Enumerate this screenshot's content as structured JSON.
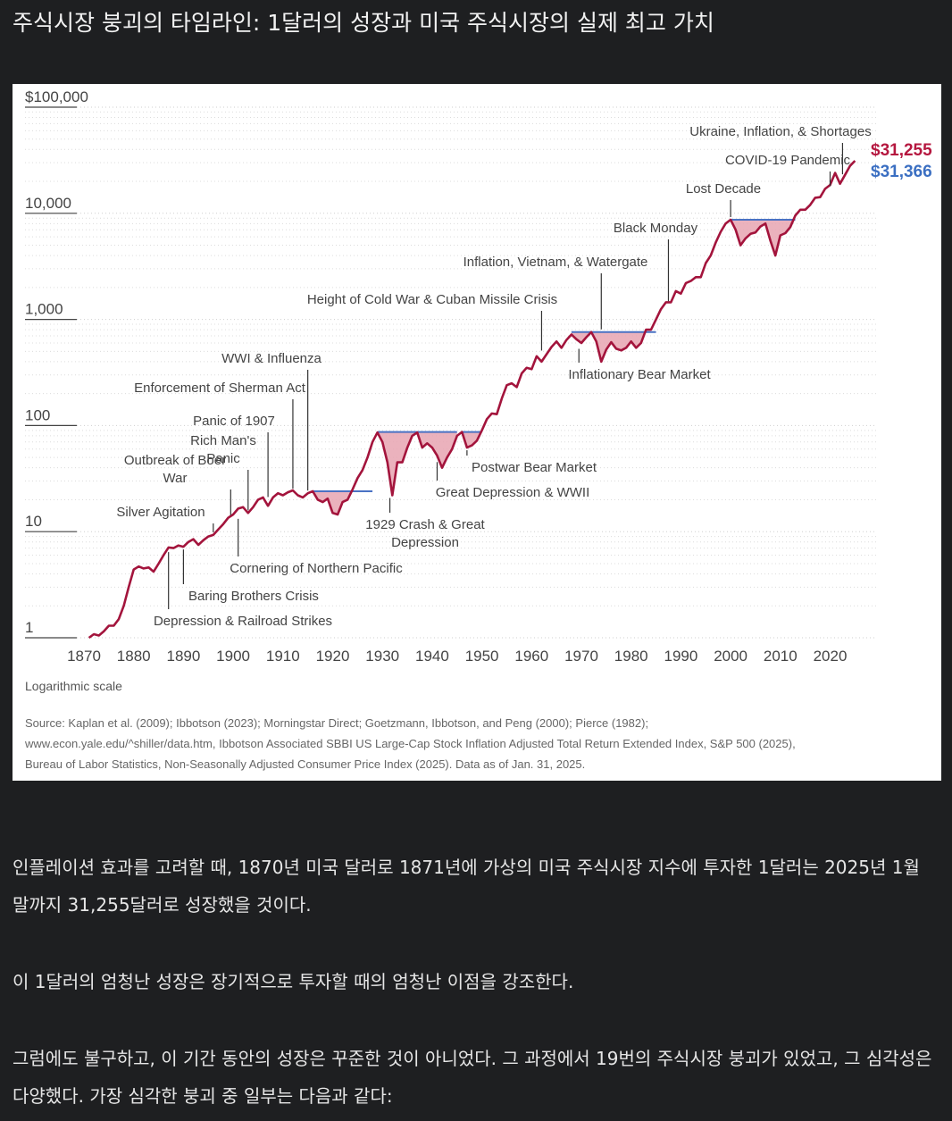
{
  "page": {
    "title": "주식시장 붕괴의 타임라인: 1달러의 성장과 미국 주식시장의 실제 최고 가치",
    "paragraphs": [
      "인플레이션 효과를 고려할 때, 1870년 미국 달러로 1871년에 가상의 미국 주식시장 지수에 투자한 1달러는 2025년 1월 말까지 31,255달러로 성장했을 것이다.",
      "이 1달러의 엄청난 성장은 장기적으로 투자할 때의 엄청난 이점을 강조한다.",
      "그럼에도 불구하고, 이 기간 동안의 성장은 꾸준한 것이 아니었다. 그 과정에서 19번의 주식시장 붕괴가 있었고, 그 심각성은 다양했다. 가장 심각한 붕괴 중 일부는 다음과 같다:"
    ]
  },
  "chart_data": {
    "type": "line",
    "title": "",
    "xlabel": "",
    "ylabel": "",
    "scale_note": "Logarithmic scale",
    "y_scale": "log",
    "ylim": [
      1,
      100000
    ],
    "xlim": [
      1870,
      2025
    ],
    "y_ticks": [
      {
        "value": 1,
        "label": "1"
      },
      {
        "value": 10,
        "label": "10"
      },
      {
        "value": 100,
        "label": "100"
      },
      {
        "value": 1000,
        "label": "1,000"
      },
      {
        "value": 10000,
        "label": "10,000"
      },
      {
        "value": 100000,
        "label": "$100,000"
      }
    ],
    "x_ticks": [
      1870,
      1880,
      1890,
      1900,
      1910,
      1920,
      1930,
      1940,
      1950,
      1960,
      1970,
      1980,
      1990,
      2000,
      2010,
      2020
    ],
    "grid": true,
    "colors": {
      "line": "#a3143c",
      "drawdown_fill": "#e8a4b1",
      "peak_line": "#4a72c4",
      "end_label_red": "#b5173f",
      "end_label_blue": "#3b6fc2"
    },
    "series": [
      {
        "values": [
          [
            1871,
            1.0
          ],
          [
            1872,
            1.08
          ],
          [
            1873,
            1.05
          ],
          [
            1874,
            1.15
          ],
          [
            1875,
            1.3
          ],
          [
            1876,
            1.3
          ],
          [
            1877,
            1.5
          ],
          [
            1878,
            2.0
          ],
          [
            1879,
            3.0
          ],
          [
            1880,
            4.4
          ],
          [
            1881,
            4.7
          ],
          [
            1882,
            4.5
          ],
          [
            1883,
            4.6
          ],
          [
            1884,
            4.2
          ],
          [
            1885,
            5.0
          ],
          [
            1886,
            6.0
          ],
          [
            1887,
            7.1
          ],
          [
            1888,
            7.0
          ],
          [
            1889,
            7.4
          ],
          [
            1890,
            7.2
          ],
          [
            1891,
            8.0
          ],
          [
            1892,
            8.5
          ],
          [
            1893,
            7.5
          ],
          [
            1894,
            8.3
          ],
          [
            1895,
            9.0
          ],
          [
            1896,
            9.3
          ],
          [
            1897,
            10.5
          ],
          [
            1898,
            11.8
          ],
          [
            1899,
            13.5
          ],
          [
            1900,
            14.5
          ],
          [
            1901,
            16.5
          ],
          [
            1902,
            17.0
          ],
          [
            1903,
            15.0
          ],
          [
            1904,
            17.0
          ],
          [
            1905,
            20.0
          ],
          [
            1906,
            21.0
          ],
          [
            1907,
            17.5
          ],
          [
            1908,
            21.0
          ],
          [
            1909,
            23.0
          ],
          [
            1910,
            22.0
          ],
          [
            1911,
            23.5
          ],
          [
            1912,
            24.5
          ],
          [
            1913,
            22.0
          ],
          [
            1914,
            21.0
          ],
          [
            1915,
            23.0
          ],
          [
            1916,
            24.0
          ],
          [
            1917,
            20.0
          ],
          [
            1918,
            19.0
          ],
          [
            1919,
            20.5
          ],
          [
            1920,
            15.0
          ],
          [
            1921,
            14.5
          ],
          [
            1922,
            19.0
          ],
          [
            1923,
            20.0
          ],
          [
            1924,
            25.0
          ],
          [
            1925,
            32.0
          ],
          [
            1926,
            38.0
          ],
          [
            1927,
            50.0
          ],
          [
            1928,
            70.0
          ],
          [
            1929,
            86.0
          ],
          [
            1930,
            70.0
          ],
          [
            1931,
            45.0
          ],
          [
            1932,
            22.0
          ],
          [
            1933,
            45.0
          ],
          [
            1934,
            45.0
          ],
          [
            1935,
            62.0
          ],
          [
            1936,
            80.0
          ],
          [
            1937,
            86.0
          ],
          [
            1938,
            62.0
          ],
          [
            1939,
            68.0
          ],
          [
            1940,
            62.0
          ],
          [
            1941,
            52.0
          ],
          [
            1942,
            40.0
          ],
          [
            1943,
            50.0
          ],
          [
            1944,
            60.0
          ],
          [
            1945,
            80.0
          ],
          [
            1946,
            87.0
          ],
          [
            1947,
            62.0
          ],
          [
            1948,
            65.0
          ],
          [
            1949,
            72.0
          ],
          [
            1950,
            90.0
          ],
          [
            1951,
            115.0
          ],
          [
            1952,
            130.0
          ],
          [
            1953,
            128.0
          ],
          [
            1954,
            180.0
          ],
          [
            1955,
            240.0
          ],
          [
            1956,
            250.0
          ],
          [
            1957,
            230.0
          ],
          [
            1958,
            310.0
          ],
          [
            1959,
            350.0
          ],
          [
            1960,
            340.0
          ],
          [
            1961,
            450.0
          ],
          [
            1962,
            400.0
          ],
          [
            1963,
            470.0
          ],
          [
            1964,
            550.0
          ],
          [
            1965,
            620.0
          ],
          [
            1966,
            540.0
          ],
          [
            1967,
            640.0
          ],
          [
            1968,
            720.0
          ],
          [
            1969,
            650.0
          ],
          [
            1970,
            600.0
          ],
          [
            1971,
            680.0
          ],
          [
            1972,
            760.0
          ],
          [
            1973,
            620.0
          ],
          [
            1974,
            400.0
          ],
          [
            1975,
            520.0
          ],
          [
            1976,
            610.0
          ],
          [
            1977,
            530.0
          ],
          [
            1978,
            510.0
          ],
          [
            1979,
            540.0
          ],
          [
            1980,
            620.0
          ],
          [
            1981,
            540.0
          ],
          [
            1982,
            600.0
          ],
          [
            1983,
            800.0
          ],
          [
            1984,
            800.0
          ],
          [
            1985,
            1000.0
          ],
          [
            1986,
            1250.0
          ],
          [
            1987,
            1450.0
          ],
          [
            1988,
            1450.0
          ],
          [
            1989,
            1850.0
          ],
          [
            1990,
            1750.0
          ],
          [
            1991,
            2200.0
          ],
          [
            1992,
            2300.0
          ],
          [
            1993,
            2500.0
          ],
          [
            1994,
            2500.0
          ],
          [
            1995,
            3400.0
          ],
          [
            1996,
            4000.0
          ],
          [
            1997,
            5300.0
          ],
          [
            1998,
            6700.0
          ],
          [
            1999,
            8000.0
          ],
          [
            2000,
            8700.0
          ],
          [
            2001,
            7000.0
          ],
          [
            2002,
            5000.0
          ],
          [
            2003,
            5800.0
          ],
          [
            2004,
            6400.0
          ],
          [
            2005,
            6600.0
          ],
          [
            2006,
            7500.0
          ],
          [
            2007,
            8000.0
          ],
          [
            2008,
            5500.0
          ],
          [
            2009,
            4000.0
          ],
          [
            2010,
            6200.0
          ],
          [
            2011,
            6500.0
          ],
          [
            2012,
            7400.0
          ],
          [
            2013,
            9500.0
          ],
          [
            2014,
            10800.0
          ],
          [
            2015,
            10800.0
          ],
          [
            2016,
            12000.0
          ],
          [
            2017,
            14000.0
          ],
          [
            2018,
            14200.0
          ],
          [
            2019,
            17000.0
          ],
          [
            2020,
            18500.0
          ],
          [
            2021,
            24000.0
          ],
          [
            2022,
            19000.0
          ],
          [
            2023,
            23000.0
          ],
          [
            2024,
            28000.0
          ],
          [
            2025,
            31255.0
          ]
        ]
      }
    ],
    "end_values": [
      {
        "label": "$31,255",
        "color": "red"
      },
      {
        "label": "$31,366",
        "color": "blue"
      }
    ],
    "drawdowns": [
      {
        "start": 1929,
        "end": 1945,
        "peak": 87
      },
      {
        "start": 1946,
        "end": 1950,
        "peak": 87
      },
      {
        "start": 1968,
        "end": 1985,
        "peak": 760
      },
      {
        "start": 2000,
        "end": 2013,
        "peak": 8700
      },
      {
        "start": 1916,
        "end": 1928,
        "peak": 24
      }
    ],
    "annotations": [
      {
        "lines": [
          "Ukraine, Inflation, & Shortages"
        ],
        "year": 2022.5,
        "val": 22000,
        "side": "above"
      },
      {
        "lines": [
          "COVID-19 Pandemic"
        ],
        "year": 2020,
        "val": 17000,
        "side": "above"
      },
      {
        "lines": [
          "Lost Decade"
        ],
        "year": 2000,
        "val": 8700,
        "side": "above"
      },
      {
        "lines": [
          "Black Monday"
        ],
        "year": 1987.5,
        "val": 1400,
        "side": "above"
      },
      {
        "lines": [
          "Inflation, Vietnam, & Watergate"
        ],
        "year": 1974,
        "val": 760,
        "side": "above"
      },
      {
        "lines": [
          "Height of Cold War & Cuban Missile Crisis"
        ],
        "year": 1962,
        "val": 480,
        "side": "above"
      },
      {
        "lines": [
          "Inflationary Bear Market"
        ],
        "year": 1969.5,
        "val": 560,
        "side": "below"
      },
      {
        "lines": [
          "WWI & Influenza"
        ],
        "year": 1915,
        "val": 23,
        "side": "above"
      },
      {
        "lines": [
          "Enforcement of Sherman Act"
        ],
        "year": 1912,
        "val": 24,
        "side": "above"
      },
      {
        "lines": [
          "Panic of 1907"
        ],
        "year": 1907,
        "val": 20,
        "side": "above"
      },
      {
        "lines": [
          "Rich Man's",
          "Panic"
        ],
        "year": 1903,
        "val": 15,
        "side": "above"
      },
      {
        "lines": [
          "Outbreak of Boer",
          "War"
        ],
        "year": 1899.5,
        "val": 13.5,
        "side": "above"
      },
      {
        "lines": [
          "Silver Agitation"
        ],
        "year": 1896,
        "val": 9.3,
        "side": "above"
      },
      {
        "lines": [
          "Postwar Bear Market"
        ],
        "year": 1947,
        "val": 62,
        "side": "below"
      },
      {
        "lines": [
          "Great Depression & WWII"
        ],
        "year": 1941,
        "val": 48,
        "side": "below"
      },
      {
        "lines": [
          "1929 Crash & Great",
          "Depression"
        ],
        "year": 1931.5,
        "val": 22,
        "side": "below"
      },
      {
        "lines": [
          "Cornering of Northern Pacific"
        ],
        "year": 1901,
        "val": 14,
        "side": "below"
      },
      {
        "lines": [
          "Baring Brothers Crisis"
        ],
        "year": 1890,
        "val": 7.2,
        "side": "below"
      },
      {
        "lines": [
          "Depression & Railroad Strikes"
        ],
        "year": 1887,
        "val": 6.8,
        "side": "below"
      }
    ],
    "source": [
      "Source: Kaplan et al. (2009); Ibbotson (2023); Morningstar Direct; Goetzmann, Ibbotson, and Peng (2000); Pierce (1982);",
      "www.econ.yale.edu/^shiller/data.htm, Ibbotson Associated SBBI US Large-Cap Stock Inflation Adjusted Total Return Extended Index, S&P 500 (2025),",
      "Bureau of Labor Statistics, Non-Seasonally Adjusted Consumer Price Index (2025). Data as of Jan. 31, 2025."
    ]
  }
}
